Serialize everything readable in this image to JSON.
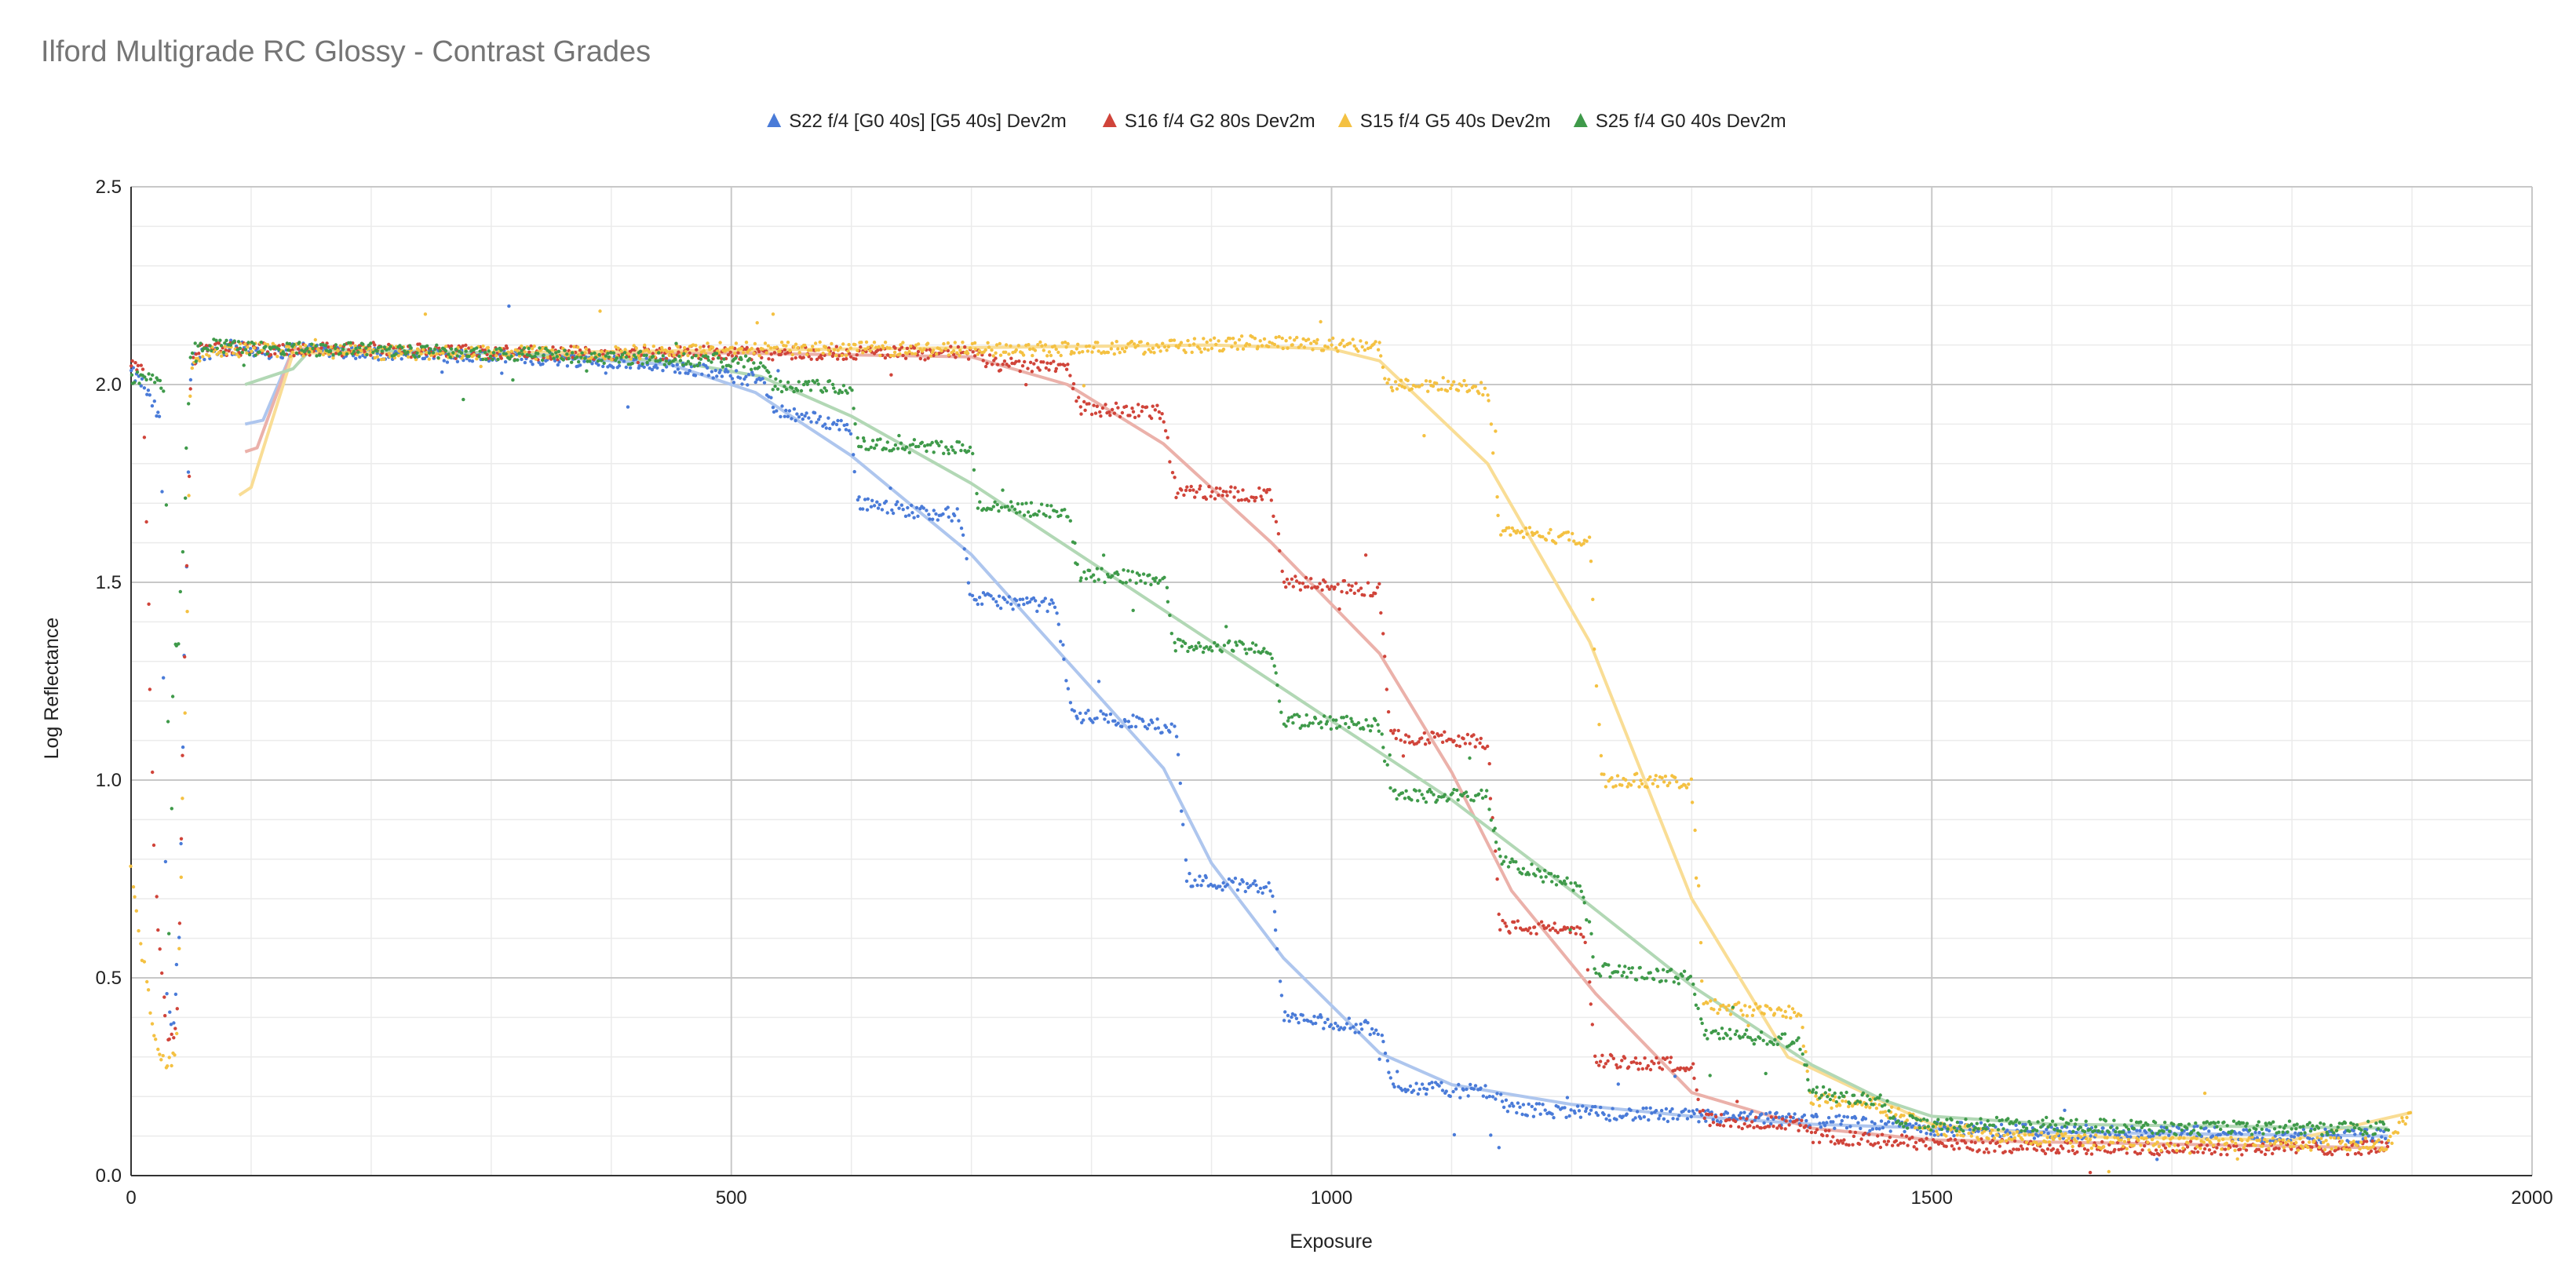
{
  "chart_data": {
    "type": "scatter",
    "title": "Ilford Multigrade RC Glossy - Contrast Grades",
    "xlabel": "Exposure",
    "ylabel": "Log Reflectance",
    "xlim": [
      0,
      2000
    ],
    "ylim": [
      0,
      2.5
    ],
    "x_ticks": [
      "0",
      "500",
      "1000",
      "1500",
      "2000"
    ],
    "y_ticks": [
      "0.0",
      "0.5",
      "1.0",
      "1.5",
      "2.0",
      "2.5"
    ],
    "grid": true,
    "minor_grid": true,
    "legend_position": "top-center",
    "trendlines": true,
    "series": [
      {
        "name": "S22 f/4 [G0 40s] [G5 40s] Dev2m",
        "color": "#4a7bd8",
        "trend_color": "#aec6ee",
        "x": [
          0,
          10,
          18,
          25,
          30,
          35,
          40,
          50,
          60,
          80,
          100,
          120,
          135,
          150,
          200,
          300,
          400,
          450,
          500,
          525,
          535,
          560,
          600,
          605,
          620,
          650,
          690,
          700,
          730,
          770,
          785,
          800,
          830,
          870,
          880,
          900,
          950,
          960,
          990,
          1040,
          1050,
          1080,
          1130,
          1150,
          1200,
          1300,
          1400,
          1500,
          1600,
          1700,
          1800,
          1880
        ],
        "y": [
          2.03,
          2.0,
          1.95,
          1.9,
          0.45,
          0.38,
          0.6,
          2.06,
          2.08,
          2.09,
          2.09,
          2.08,
          2.09,
          2.09,
          2.08,
          2.07,
          2.06,
          2.05,
          2.02,
          2.01,
          1.94,
          1.92,
          1.89,
          1.7,
          1.7,
          1.68,
          1.67,
          1.46,
          1.45,
          1.44,
          1.16,
          1.16,
          1.15,
          1.13,
          0.75,
          0.74,
          0.73,
          0.4,
          0.39,
          0.37,
          0.23,
          0.22,
          0.21,
          0.17,
          0.16,
          0.15,
          0.14,
          0.12,
          0.11,
          0.11,
          0.1,
          0.1
        ],
        "trend_x": [
          95,
          110,
          135,
          150,
          300,
          450,
          520,
          600,
          700,
          780,
          860,
          900,
          960,
          1040,
          1100,
          1200,
          1300,
          1400,
          1500,
          1600,
          1880
        ],
        "trend_y": [
          1.9,
          1.91,
          2.09,
          2.09,
          2.08,
          2.05,
          1.98,
          1.82,
          1.57,
          1.3,
          1.03,
          0.79,
          0.55,
          0.31,
          0.23,
          0.18,
          0.15,
          0.13,
          0.12,
          0.11,
          0.1
        ]
      },
      {
        "name": "S16 f/4 G2 80s Dev2m",
        "color": "#d0443a",
        "trend_color": "#ebb1aa",
        "x": [
          0,
          10,
          20,
          30,
          38,
          42,
          50,
          60,
          100,
          200,
          300,
          400,
          500,
          600,
          700,
          720,
          780,
          790,
          860,
          870,
          950,
          960,
          1040,
          1050,
          1130,
          1140,
          1210,
          1220,
          1300,
          1310,
          1390,
          1400,
          1500,
          1600,
          1700,
          1800,
          1880
        ],
        "y": [
          2.05,
          2.03,
          0.72,
          0.35,
          0.36,
          0.9,
          2.06,
          2.09,
          2.09,
          2.09,
          2.08,
          2.08,
          2.08,
          2.08,
          2.08,
          2.05,
          2.05,
          1.94,
          1.93,
          1.73,
          1.72,
          1.5,
          1.48,
          1.11,
          1.1,
          0.63,
          0.62,
          0.29,
          0.28,
          0.14,
          0.13,
          0.1,
          0.08,
          0.07,
          0.07,
          0.07,
          0.07
        ],
        "trend_x": [
          95,
          105,
          135,
          150,
          300,
          500,
          700,
          780,
          860,
          950,
          1040,
          1100,
          1150,
          1220,
          1300,
          1400,
          1500,
          1880
        ],
        "trend_y": [
          1.83,
          1.84,
          2.09,
          2.09,
          2.08,
          2.08,
          2.07,
          2.0,
          1.85,
          1.6,
          1.32,
          1.02,
          0.72,
          0.46,
          0.21,
          0.12,
          0.09,
          0.07
        ]
      },
      {
        "name": "S15 f/4 G5 40s Dev2m",
        "color": "#f4c142",
        "trend_color": "#f9dd95",
        "x": [
          0,
          10,
          20,
          30,
          38,
          45,
          50,
          60,
          100,
          200,
          300,
          400,
          500,
          600,
          700,
          800,
          900,
          950,
          1000,
          1040,
          1045,
          1100,
          1130,
          1140,
          1180,
          1215,
          1225,
          1260,
          1300,
          1310,
          1350,
          1390,
          1400,
          1450,
          1500,
          1600,
          1700,
          1800,
          1880,
          1900
        ],
        "y": [
          0.78,
          0.55,
          0.34,
          0.28,
          0.3,
          1.2,
          2.05,
          2.08,
          2.09,
          2.08,
          2.08,
          2.08,
          2.09,
          2.09,
          2.09,
          2.09,
          2.1,
          2.11,
          2.1,
          2.1,
          2.0,
          2.0,
          1.99,
          1.63,
          1.62,
          1.6,
          1.0,
          1.0,
          0.99,
          0.43,
          0.42,
          0.41,
          0.19,
          0.18,
          0.12,
          0.09,
          0.08,
          0.08,
          0.08,
          0.17
        ],
        "trend_x": [
          90,
          100,
          135,
          150,
          300,
          600,
          900,
          1000,
          1040,
          1130,
          1215,
          1300,
          1380,
          1450,
          1500,
          1600,
          1800,
          1900
        ],
        "trend_y": [
          1.72,
          1.74,
          2.08,
          2.08,
          2.08,
          2.09,
          2.1,
          2.09,
          2.06,
          1.8,
          1.35,
          0.7,
          0.3,
          0.2,
          0.13,
          0.1,
          0.09,
          0.16
        ]
      },
      {
        "name": "S25 f/4 G0 40s Dev2m",
        "color": "#3f9a4a",
        "trend_color": "#b2d8b5",
        "x": [
          0,
          10,
          20,
          28,
          32,
          36,
          40,
          50,
          60,
          100,
          200,
          300,
          400,
          500,
          525,
          535,
          600,
          605,
          700,
          705,
          780,
          790,
          860,
          870,
          950,
          960,
          1040,
          1050,
          1130,
          1140,
          1210,
          1220,
          1300,
          1310,
          1390,
          1400,
          1460,
          1470,
          1500,
          1600,
          1700,
          1800,
          1880
        ],
        "y": [
          2.02,
          2.02,
          2.01,
          1.98,
          0.62,
          1.35,
          1.35,
          2.09,
          2.1,
          2.09,
          2.09,
          2.08,
          2.07,
          2.06,
          2.05,
          2.0,
          1.99,
          1.85,
          1.84,
          1.69,
          1.68,
          1.52,
          1.51,
          1.34,
          1.33,
          1.15,
          1.14,
          0.96,
          0.96,
          0.8,
          0.72,
          0.52,
          0.5,
          0.36,
          0.34,
          0.21,
          0.19,
          0.14,
          0.13,
          0.13,
          0.12,
          0.12,
          0.12
        ],
        "trend_x": [
          95,
          135,
          150,
          300,
          450,
          525,
          600,
          700,
          800,
          900,
          1000,
          1100,
          1200,
          1300,
          1400,
          1460,
          1500,
          1600,
          1880
        ],
        "trend_y": [
          2.0,
          2.04,
          2.09,
          2.08,
          2.06,
          2.02,
          1.92,
          1.75,
          1.55,
          1.35,
          1.15,
          0.95,
          0.72,
          0.48,
          0.28,
          0.19,
          0.15,
          0.13,
          0.12
        ]
      }
    ]
  }
}
